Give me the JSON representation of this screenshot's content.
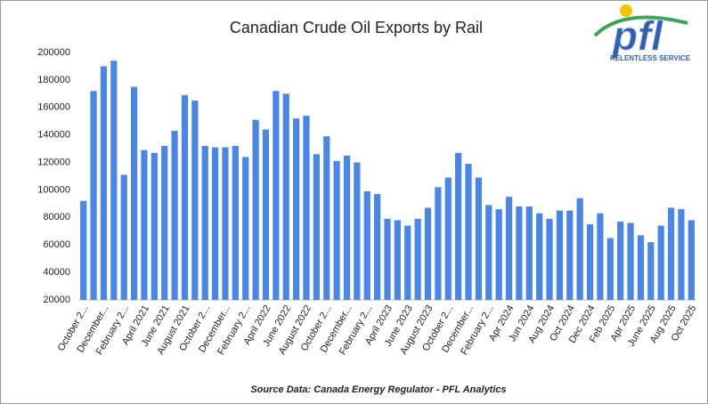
{
  "chart_data": {
    "type": "bar",
    "title": "Canadian Crude Oil Exports by Rail",
    "source": "Source Data: Canada Energy Regulator - PFL Analytics",
    "logo": {
      "text": "pfl",
      "tagline": "RELENTLESS SERVICE"
    },
    "color": "#4a86e8",
    "categories": [
      "October 2...",
      null,
      "December...",
      null,
      "February 2...",
      null,
      "April 2021",
      null,
      "June 2021",
      null,
      "August 2021",
      null,
      "October 2...",
      null,
      "December...",
      null,
      "February 2...",
      null,
      "April 2022",
      null,
      "June 2022",
      null,
      "August 2022",
      null,
      "October 2...",
      null,
      "December...",
      null,
      "February 2...",
      null,
      "April 2023",
      null,
      "June 2023",
      null,
      "August 2023",
      null,
      "October 2...",
      null,
      "December...",
      null,
      "February 2...",
      null,
      "Apr 2024",
      null,
      "Jun 2024",
      null,
      "Aug 2024",
      null,
      "Oct 2024",
      null,
      "Dec 2024",
      null,
      "Feb 2025",
      null,
      "Apr 2025",
      null,
      "June 2025",
      null,
      "Aug 2025",
      null,
      "Oct 2025"
    ],
    "values": [
      92000,
      172000,
      190000,
      194000,
      111000,
      175000,
      129000,
      127000,
      132000,
      143000,
      169000,
      165000,
      132000,
      131000,
      131000,
      132000,
      124000,
      151000,
      144000,
      172000,
      170000,
      152000,
      154000,
      126000,
      139000,
      121000,
      125000,
      120000,
      99000,
      97000,
      79000,
      78000,
      74000,
      79000,
      87000,
      102000,
      109000,
      127000,
      119000,
      109000,
      89000,
      86000,
      95000,
      88000,
      88000,
      83000,
      79000,
      85000,
      85000,
      94000,
      75000,
      83000,
      65000,
      77000,
      76000,
      67000,
      62000,
      74000,
      87000,
      86000,
      78000
    ],
    "ylim": [
      20000,
      200000
    ],
    "yticks": [
      20000,
      40000,
      60000,
      80000,
      100000,
      120000,
      140000,
      160000,
      180000,
      200000
    ],
    "grid": false
  }
}
